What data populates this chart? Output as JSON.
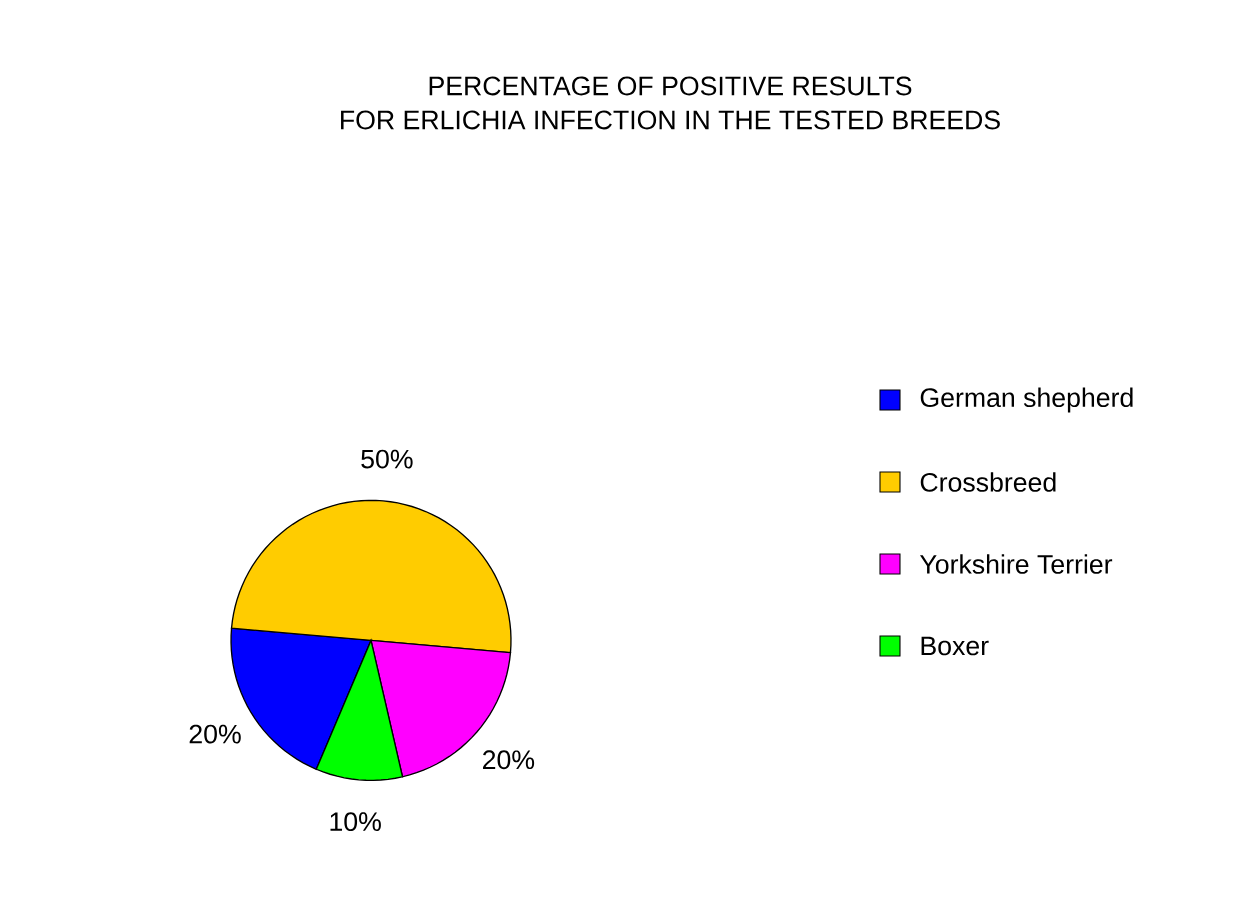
{
  "chart_data": {
    "type": "pie",
    "title": "PERCENTAGE OF POSITIVE RESULTS",
    "subtitle": "FOR ERLICHIA INFECTION IN THE TESTED BREEDS",
    "categories": [
      "German shepherd",
      "Crossbreed",
      "Yorkshire Terrier",
      "Boxer"
    ],
    "values": [
      20,
      50,
      20,
      10
    ],
    "colors": [
      "#0000ff",
      "#ffcc00",
      "#ff00ff",
      "#00ff00"
    ],
    "value_labels": [
      "20%",
      "50%",
      "20%",
      "10%"
    ],
    "legend": "right"
  }
}
